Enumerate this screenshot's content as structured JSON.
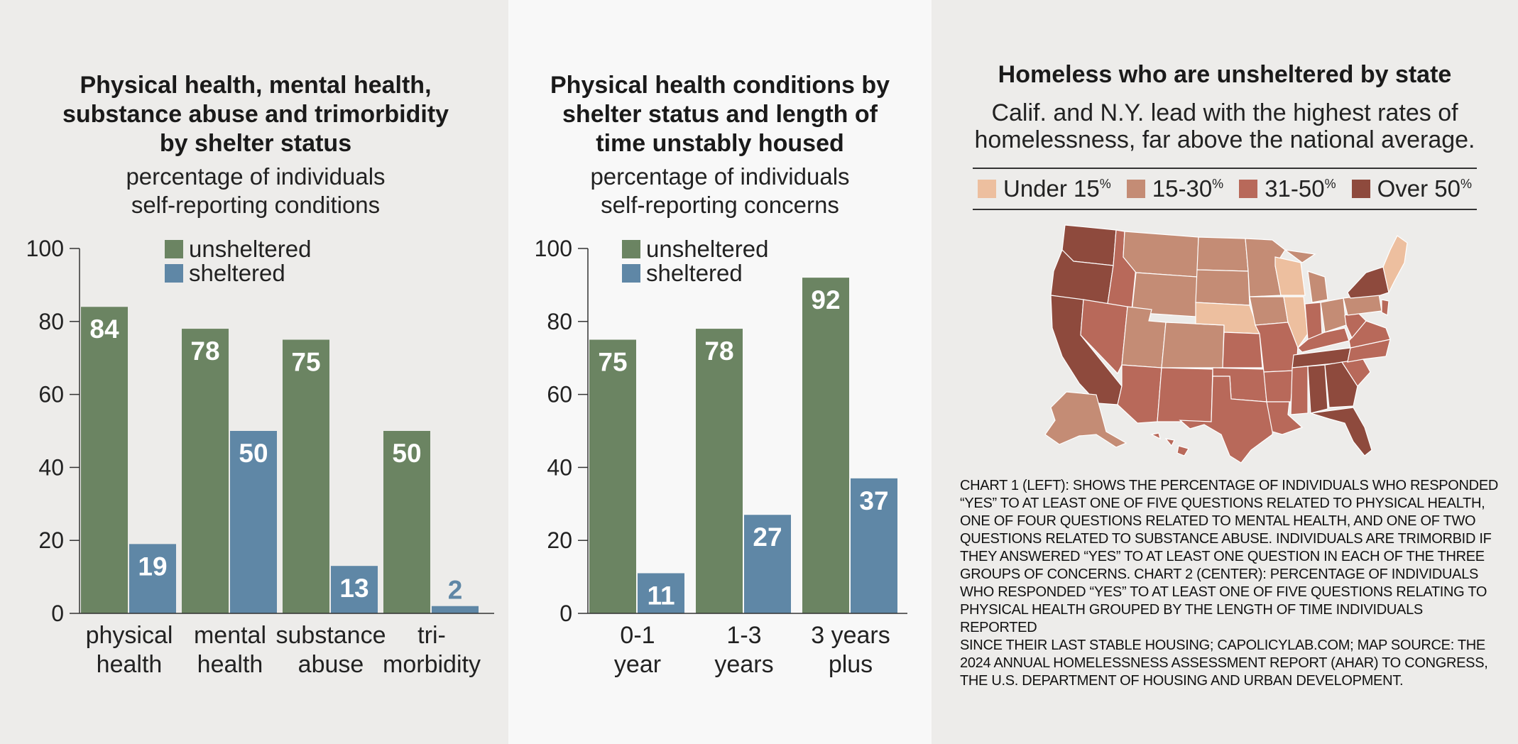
{
  "chart_data": [
    {
      "type": "bar",
      "title": "Physical health, mental health, substance abuse and trimorbidity by shelter status",
      "subtitle": "percentage of individuals self-reporting conditions",
      "categories": [
        "physical health",
        "mental health",
        "substance abuse",
        "tri-morbidity"
      ],
      "series": [
        {
          "name": "unsheltered",
          "values": [
            84,
            78,
            75,
            50
          ]
        },
        {
          "name": "sheltered",
          "values": [
            19,
            50,
            13,
            2
          ]
        }
      ],
      "ylim": [
        0,
        100
      ],
      "yticks": [
        0,
        20,
        40,
        60,
        80,
        100
      ],
      "legend": "top",
      "grid": false
    },
    {
      "type": "bar",
      "title": "Physical health conditions by shelter status and length of time unstably housed",
      "subtitle": "percentage of individuals self-reporting concerns",
      "categories": [
        "0-1 year",
        "1-3 years",
        "3 years plus"
      ],
      "series": [
        {
          "name": "unsheltered",
          "values": [
            75,
            78,
            92
          ]
        },
        {
          "name": "sheltered",
          "values": [
            11,
            27,
            37
          ]
        }
      ],
      "ylim": [
        0,
        100
      ],
      "yticks": [
        0,
        20,
        40,
        60,
        80,
        100
      ],
      "legend": "top",
      "grid": false
    }
  ],
  "colors": {
    "unsheltered": "#6b8462",
    "sheltered": "#5f87a6",
    "under15": "#edbf9f",
    "r15_30": "#c48c75",
    "r31_50": "#b8695a",
    "over50": "#8e4a3d"
  },
  "chart1": {
    "title_lines": [
      "Physical health, mental health,",
      "substance abuse and trimorbidity",
      "by shelter status"
    ],
    "subtitle_lines": [
      "percentage of individuals",
      "self-reporting conditions"
    ],
    "category_lines": [
      [
        "physical",
        "health"
      ],
      [
        "mental",
        "health"
      ],
      [
        "substance",
        "abuse"
      ],
      [
        "tri-",
        "morbidity"
      ]
    ]
  },
  "chart2": {
    "title_lines": [
      "Physical health conditions by",
      "shelter status and length of",
      "time unstably housed"
    ],
    "subtitle_lines": [
      "percentage of individuals",
      "self-reporting concerns"
    ],
    "category_lines": [
      [
        "0-1",
        "year"
      ],
      [
        "1-3",
        "years"
      ],
      [
        "3 years",
        "plus"
      ]
    ]
  },
  "map": {
    "title": "Homeless who are unsheltered by state",
    "subtitle_line1": "Calif. and N.Y. lead with the highest rates of",
    "subtitle_line2": "homelessness, far above the national average.",
    "legend": [
      {
        "label": "Under 15",
        "sup": "%",
        "color_key": "under15"
      },
      {
        "label": "15-30",
        "sup": "%",
        "color_key": "r15_30"
      },
      {
        "label": "31-50",
        "sup": "%",
        "color_key": "r31_50"
      },
      {
        "label": "Over 50",
        "sup": "%",
        "color_key": "over50"
      }
    ]
  },
  "notes_lines": [
    "Chart 1 (left): Shows the percentage of individuals who responded",
    "“yes” to at least one of five questions related to physical health,",
    "one of four questions related to mental health, and one of two",
    "questions related to substance abuse. Individuals are trimorbid if",
    "they answered “yes” to at least one question in each of the three",
    "groups of concerns. Chart 2 (center): Percentage of individuals",
    "who responded “yes” to at least one of five questions relating to",
    "physical health grouped by the length of time individuals reported",
    "since their last stable housing; capolicylab.com; Map source: The",
    "2024 Annual Homelessness Assessment Report (AHAR) to Congress,",
    "the U.S. Department of Housing and Urban Development."
  ]
}
